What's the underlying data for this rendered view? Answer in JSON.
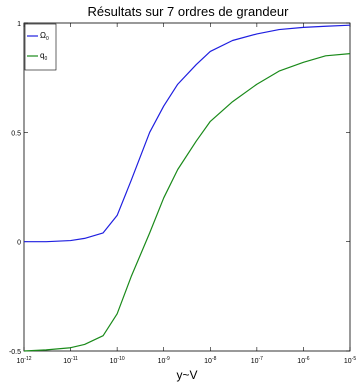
{
  "chart_data": {
    "type": "line",
    "title": "Résultats sur 7 ordres de grandeur",
    "xlabel": "y~V",
    "ylabel": "",
    "x_scale": "log",
    "xlim": [
      1e-12,
      1e-05
    ],
    "ylim": [
      -0.5,
      1
    ],
    "grid": false,
    "legend_position": "top-left",
    "x_ticks": [
      {
        "base": "10",
        "exp": "-12"
      },
      {
        "base": "10",
        "exp": "-11"
      },
      {
        "base": "10",
        "exp": "-10"
      },
      {
        "base": "10",
        "exp": "-9"
      },
      {
        "base": "10",
        "exp": "-8"
      },
      {
        "base": "10",
        "exp": "-7"
      },
      {
        "base": "10",
        "exp": "-6"
      },
      {
        "base": "10",
        "exp": "-5"
      }
    ],
    "y_ticks": [
      "-0.5",
      "0",
      "0.5",
      "1"
    ],
    "x": [
      1e-12,
      3e-12,
      1e-11,
      2e-11,
      5e-11,
      1e-10,
      2e-10,
      5e-10,
      1e-09,
      2e-09,
      5e-09,
      1e-08,
      3e-08,
      1e-07,
      3e-07,
      1e-06,
      3e-06,
      1e-05
    ],
    "series": [
      {
        "name": "Ω",
        "name_sub": "0",
        "color": "#1f1fe0",
        "values": [
          0.0,
          0.0,
          0.005,
          0.015,
          0.04,
          0.12,
          0.28,
          0.5,
          0.62,
          0.72,
          0.81,
          0.87,
          0.92,
          0.95,
          0.97,
          0.98,
          0.985,
          0.99
        ]
      },
      {
        "name": "q",
        "name_sub": "0",
        "color": "#1a8a1a",
        "values": [
          -0.5,
          -0.495,
          -0.485,
          -0.47,
          -0.43,
          -0.33,
          -0.16,
          0.04,
          0.2,
          0.33,
          0.46,
          0.55,
          0.64,
          0.72,
          0.78,
          0.82,
          0.85,
          0.86
        ]
      }
    ]
  }
}
